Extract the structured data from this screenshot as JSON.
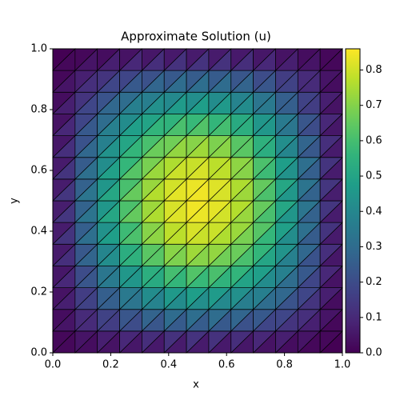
{
  "chart_data": {
    "type": "tripcolor",
    "title": "Approximate Solution (u)",
    "x_label": "x",
    "y_label": "y",
    "colormap": "viridis",
    "mesh_edges": true,
    "nx": 13,
    "ny": 14,
    "xlim": [
      0,
      1
    ],
    "ylim": [
      0,
      1
    ],
    "xticks": [
      {
        "value": 0,
        "label": "0.0"
      },
      0.2,
      0.4,
      0.6,
      0.8,
      {
        "value": 1,
        "label": "1.0"
      }
    ],
    "yticks": [
      {
        "value": 0,
        "label": "0.0"
      },
      0.2,
      0.4,
      0.6,
      0.8,
      {
        "value": 1,
        "label": "1.0"
      }
    ],
    "clim": [
      0,
      0.86
    ],
    "cticks": [
      {
        "value": 0,
        "label": "0.0"
      },
      0.1,
      0.2,
      0.3,
      0.4,
      0.5,
      0.6,
      0.7,
      0.8
    ],
    "z": [
      [
        0,
        0,
        0,
        0,
        0,
        0,
        0,
        0,
        0,
        0,
        0,
        0,
        0,
        0
      ],
      [
        0,
        0.05,
        0.09,
        0.13,
        0.16,
        0.18,
        0.19,
        0.19,
        0.18,
        0.16,
        0.13,
        0.09,
        0.05,
        0
      ],
      [
        0,
        0.09,
        0.17,
        0.25,
        0.31,
        0.35,
        0.37,
        0.37,
        0.35,
        0.31,
        0.25,
        0.17,
        0.09,
        0
      ],
      [
        0,
        0.13,
        0.25,
        0.36,
        0.44,
        0.5,
        0.53,
        0.53,
        0.5,
        0.44,
        0.36,
        0.25,
        0.13,
        0
      ],
      [
        0,
        0.16,
        0.31,
        0.45,
        0.55,
        0.63,
        0.67,
        0.67,
        0.63,
        0.55,
        0.45,
        0.31,
        0.16,
        0
      ],
      [
        0,
        0.19,
        0.36,
        0.51,
        0.64,
        0.72,
        0.77,
        0.77,
        0.72,
        0.64,
        0.51,
        0.36,
        0.19,
        0
      ],
      [
        0,
        0.2,
        0.39,
        0.56,
        0.69,
        0.78,
        0.83,
        0.83,
        0.78,
        0.69,
        0.56,
        0.39,
        0.2,
        0
      ],
      [
        0,
        0.21,
        0.4,
        0.57,
        0.71,
        0.8,
        0.85,
        0.85,
        0.8,
        0.71,
        0.57,
        0.4,
        0.21,
        0
      ],
      [
        0,
        0.2,
        0.39,
        0.56,
        0.69,
        0.78,
        0.83,
        0.83,
        0.78,
        0.69,
        0.56,
        0.39,
        0.2,
        0
      ],
      [
        0,
        0.19,
        0.36,
        0.51,
        0.64,
        0.72,
        0.77,
        0.77,
        0.72,
        0.64,
        0.51,
        0.36,
        0.19,
        0
      ],
      [
        0,
        0.16,
        0.31,
        0.45,
        0.55,
        0.63,
        0.67,
        0.67,
        0.63,
        0.55,
        0.45,
        0.31,
        0.16,
        0
      ],
      [
        0,
        0.13,
        0.25,
        0.36,
        0.44,
        0.5,
        0.53,
        0.53,
        0.5,
        0.44,
        0.36,
        0.25,
        0.13,
        0
      ],
      [
        0,
        0.09,
        0.17,
        0.25,
        0.31,
        0.35,
        0.37,
        0.37,
        0.35,
        0.31,
        0.25,
        0.17,
        0.09,
        0
      ],
      [
        0,
        0.05,
        0.09,
        0.13,
        0.16,
        0.18,
        0.19,
        0.19,
        0.18,
        0.16,
        0.13,
        0.09,
        0.05,
        0
      ],
      [
        0,
        0,
        0,
        0,
        0,
        0,
        0,
        0,
        0,
        0,
        0,
        0,
        0,
        0
      ]
    ]
  }
}
